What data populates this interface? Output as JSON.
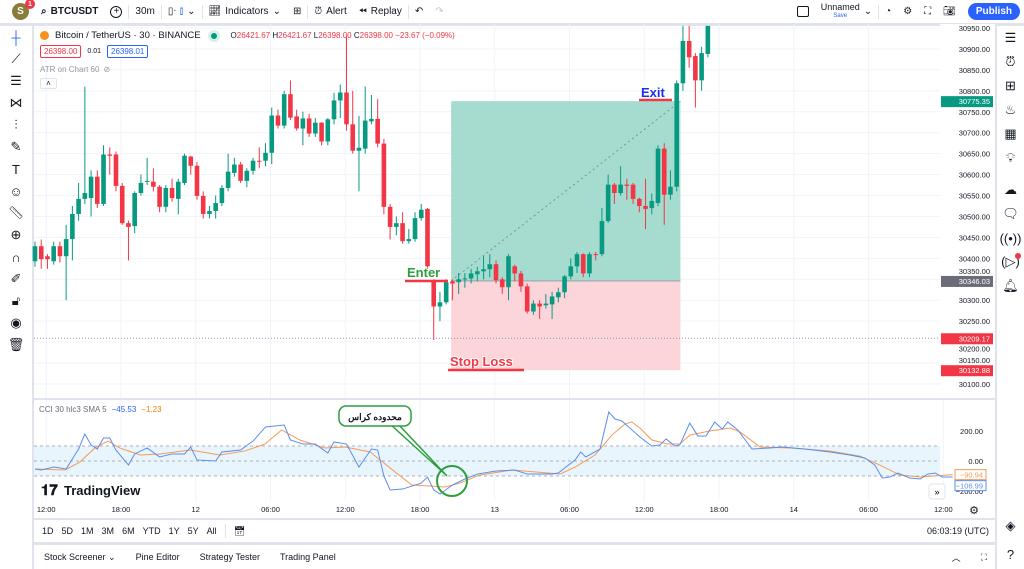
{
  "topbar": {
    "avatar": "S",
    "badge": "1",
    "symbol": "BTCUSDT",
    "interval": "30m",
    "indicators": "Indicators",
    "alert": "Alert",
    "replay": "Replay",
    "layout_name": "Unnamed",
    "layout_save": "Save",
    "publish": "Publish"
  },
  "legend": {
    "title": "Bitcoin / TetherUS · 30 · BINANCE",
    "o_label": "O",
    "o": "26421.67",
    "h_label": "H",
    "h": "26421.67",
    "l_label": "L",
    "l": "26398.00",
    "c_label": "C",
    "c": "26398.00",
    "change": "−23.67 (−0.09%)",
    "bid": "26398.00",
    "spread": "0.01",
    "ask": "26398.01",
    "atr": "ATR on Chart 60"
  },
  "colors": {
    "up": "#089981",
    "down": "#f23645",
    "accent": "#2962ff",
    "cci": "#5b8def",
    "cci_ma": "#f59a55",
    "profit": "#a6dbd0",
    "loss": "#fbd5d9"
  },
  "price_axis": {
    "labels": [
      30950,
      30900,
      30850,
      30800,
      30750,
      30700,
      30650,
      30600,
      30550,
      30500,
      30450,
      30400,
      30350,
      30300,
      30250,
      30200,
      30150,
      30100
    ],
    "markers": [
      {
        "value": 30775.35,
        "text": "30775.35",
        "color": "#089981"
      },
      {
        "value": 30346.03,
        "text": "30346.03",
        "color": "#6a6d78"
      },
      {
        "value": 30209.17,
        "text": "30209.17",
        "color": "#f23645"
      },
      {
        "value": 30132.88,
        "text": "30132.88",
        "color": "#f23645"
      }
    ]
  },
  "position": {
    "entry": 30346.03,
    "target": 30775.35,
    "stop": 30132.88,
    "start_bar": 66.8,
    "end_bar": 103.6,
    "enter_label": "Enter",
    "exit_label": "Exit",
    "stop_label": "Stop Loss",
    "last_line": 30209.17
  },
  "candles": [
    [
      30393,
      30440,
      30380,
      30429
    ],
    [
      30429,
      30445,
      30375,
      30398
    ],
    [
      30405,
      30410,
      30375,
      30398
    ],
    [
      30393,
      30440,
      30385,
      30429
    ],
    [
      30429,
      30440,
      30390,
      30405
    ],
    [
      30405,
      30480,
      30300,
      30446
    ],
    [
      30446,
      30525,
      30395,
      30506
    ],
    [
      30506,
      30580,
      30490,
      30542
    ],
    [
      30542,
      30810,
      30530,
      30556
    ],
    [
      30544,
      30610,
      30500,
      30595
    ],
    [
      30595,
      30610,
      30520,
      30530
    ],
    [
      30530,
      30670,
      30525,
      30648
    ],
    [
      30648,
      30665,
      30600,
      30645
    ],
    [
      30648,
      30655,
      30560,
      30573
    ],
    [
      30573,
      30580,
      30480,
      30484
    ],
    [
      30484,
      30490,
      30395,
      30475
    ],
    [
      30477,
      30560,
      30460,
      30556
    ],
    [
      30556,
      30600,
      30550,
      30580
    ],
    [
      30583,
      30640,
      30575,
      30585
    ],
    [
      30583,
      30615,
      30560,
      30571
    ],
    [
      30571,
      30575,
      30510,
      30523
    ],
    [
      30523,
      30575,
      30510,
      30568
    ],
    [
      30568,
      30590,
      30535,
      30544
    ],
    [
      30542,
      30590,
      30505,
      30583
    ],
    [
      30580,
      30650,
      30575,
      30645
    ],
    [
      30643,
      30645,
      30600,
      30621
    ],
    [
      30621,
      30630,
      30540,
      30549
    ],
    [
      30549,
      30560,
      30495,
      30506
    ],
    [
      30506,
      30525,
      30495,
      30513
    ],
    [
      30513,
      30550,
      30495,
      30532
    ],
    [
      30532,
      30575,
      30525,
      30568
    ],
    [
      30568,
      30650,
      30560,
      30607
    ],
    [
      30604,
      30640,
      30595,
      30624
    ],
    [
      30624,
      30630,
      30580,
      30585
    ],
    [
      30585,
      30615,
      30570,
      30609
    ],
    [
      30609,
      30640,
      30600,
      30633
    ],
    [
      30633,
      30665,
      30615,
      30631
    ],
    [
      30633,
      30675,
      30620,
      30652
    ],
    [
      30652,
      30760,
      30625,
      30741
    ],
    [
      30741,
      30755,
      30710,
      30717
    ],
    [
      30717,
      30800,
      30710,
      30792
    ],
    [
      30792,
      30825,
      30730,
      30736
    ],
    [
      30739,
      30755,
      30705,
      30710
    ],
    [
      30710,
      30750,
      30670,
      30734
    ],
    [
      30734,
      30745,
      30690,
      30698
    ],
    [
      30698,
      30735,
      30690,
      30724
    ],
    [
      30724,
      30725,
      30670,
      30679
    ],
    [
      30679,
      30735,
      30670,
      30732
    ],
    [
      30732,
      30795,
      30720,
      30777
    ],
    [
      30777,
      30815,
      30735,
      30796
    ],
    [
      30796,
      30930,
      30705,
      30720
    ],
    [
      30720,
      30800,
      30650,
      30657
    ],
    [
      30657,
      30740,
      30560,
      30664
    ],
    [
      30662,
      30810,
      30650,
      30729
    ],
    [
      30727,
      30790,
      30720,
      30733
    ],
    [
      30733,
      30780,
      30665,
      30674
    ],
    [
      30674,
      30685,
      30505,
      30523
    ],
    [
      30523,
      30530,
      30445,
      30475
    ],
    [
      30475,
      30500,
      30455,
      30484
    ],
    [
      30484,
      30510,
      30435,
      30441
    ],
    [
      30441,
      30470,
      30435,
      30446
    ],
    [
      30446,
      30510,
      30440,
      30496
    ],
    [
      30496,
      30530,
      30490,
      30516
    ],
    [
      30518,
      30520,
      30370,
      30381
    ],
    [
      30345,
      30350,
      30205,
      30285
    ],
    [
      30285,
      30320,
      30250,
      30295
    ],
    [
      30295,
      30350,
      30290,
      30343
    ],
    [
      30345,
      30350,
      30300,
      30340
    ],
    [
      30343,
      30365,
      30315,
      30350
    ],
    [
      30350,
      30365,
      30330,
      30352
    ],
    [
      30352,
      30375,
      30340,
      30364
    ],
    [
      30362,
      30380,
      30345,
      30369
    ],
    [
      30369,
      30405,
      30350,
      30374
    ],
    [
      30374,
      30410,
      30355,
      30386
    ],
    [
      30386,
      30395,
      30340,
      30348
    ],
    [
      30350,
      30355,
      30315,
      30331
    ],
    [
      30331,
      30410,
      30300,
      30405
    ],
    [
      30381,
      30385,
      30345,
      30364
    ],
    [
      30364,
      30370,
      30320,
      30333
    ],
    [
      30333,
      30340,
      30268,
      30273
    ],
    [
      30273,
      30300,
      30265,
      30292
    ],
    [
      30292,
      30300,
      30255,
      30285
    ],
    [
      30288,
      30315,
      30280,
      30292
    ],
    [
      30290,
      30320,
      30255,
      30309
    ],
    [
      30307,
      30330,
      30295,
      30319
    ],
    [
      30319,
      30360,
      30305,
      30357
    ],
    [
      30357,
      30400,
      30350,
      30381
    ],
    [
      30381,
      30415,
      30365,
      30410
    ],
    [
      30410,
      30412,
      30355,
      30364
    ],
    [
      30364,
      30415,
      30355,
      30410
    ],
    [
      30410,
      30415,
      30395,
      30408
    ],
    [
      30410,
      30520,
      30405,
      30489
    ],
    [
      30489,
      30600,
      30485,
      30576
    ],
    [
      30576,
      30580,
      30530,
      30556
    ],
    [
      30556,
      30620,
      30550,
      30576
    ],
    [
      30576,
      30590,
      30540,
      30573
    ],
    [
      30576,
      30580,
      30530,
      30542
    ],
    [
      30542,
      30545,
      30510,
      30525
    ],
    [
      30525,
      30590,
      30470,
      30518
    ],
    [
      30520,
      30555,
      30505,
      30537
    ],
    [
      30532,
      30670,
      30525,
      30662
    ],
    [
      30662,
      30675,
      30480,
      30552
    ],
    [
      30552,
      30610,
      30540,
      30571
    ],
    [
      30571,
      30825,
      30560,
      30818
    ],
    [
      30818,
      30955,
      30800,
      30919
    ],
    [
      30919,
      30955,
      30855,
      30880
    ],
    [
      30883,
      30890,
      30760,
      30825
    ],
    [
      30825,
      30905,
      30800,
      30890
    ],
    [
      30888,
      30955,
      30880,
      30955
    ]
  ],
  "time_axis": {
    "labels": [
      "12:00",
      "18:00",
      "12",
      "06:00",
      "12:00",
      "18:00",
      "13",
      "06:00",
      "12:00",
      "18:00",
      "14",
      "06:00",
      "12:00"
    ]
  },
  "cci": {
    "title": "CCI 30 hlc3 SMA 5",
    "value": "−45.53",
    "ma_value": "−1.23",
    "axis_labels": [
      "200.00",
      "0.00",
      "−200.00"
    ],
    "last_cci": "−106.99",
    "last_ma": "−90.94",
    "callout": "محدوده کراس",
    "series": [
      [
        0,
        -53
      ],
      [
        1,
        -60
      ],
      [
        3,
        -40
      ],
      [
        5,
        -53
      ],
      [
        7,
        80
      ],
      [
        8,
        180
      ],
      [
        9,
        107
      ],
      [
        10,
        80
      ],
      [
        11,
        153
      ],
      [
        12,
        153
      ],
      [
        13,
        73
      ],
      [
        15,
        -27
      ],
      [
        16,
        47
      ],
      [
        18,
        87
      ],
      [
        20,
        27
      ],
      [
        22,
        47
      ],
      [
        24,
        47
      ],
      [
        25,
        93
      ],
      [
        26,
        7
      ],
      [
        29,
        0
      ],
      [
        30,
        60
      ],
      [
        33,
        73
      ],
      [
        35,
        133
      ],
      [
        37,
        227
      ],
      [
        40,
        240
      ],
      [
        41,
        140
      ],
      [
        43,
        113
      ],
      [
        45,
        113
      ],
      [
        47,
        53
      ],
      [
        48,
        127
      ],
      [
        50,
        113
      ],
      [
        52,
        -40
      ],
      [
        54,
        80
      ],
      [
        55,
        73
      ],
      [
        56,
        -100
      ],
      [
        57,
        -193
      ],
      [
        59,
        -187
      ],
      [
        62,
        -147
      ],
      [
        63,
        -107
      ],
      [
        64,
        -193
      ],
      [
        65,
        -220
      ],
      [
        67,
        -160
      ],
      [
        69,
        -120
      ],
      [
        71,
        -87
      ],
      [
        74,
        -67
      ],
      [
        77,
        -60
      ],
      [
        79,
        -87
      ],
      [
        83,
        -87
      ],
      [
        84,
        -80
      ],
      [
        86.7,
        7
      ],
      [
        87.6,
        60
      ],
      [
        88.4,
        27
      ],
      [
        90.7,
        80
      ],
      [
        92.1,
        327
      ],
      [
        93.1,
        280
      ],
      [
        94.2,
        267
      ],
      [
        97.1,
        160
      ],
      [
        99,
        100
      ],
      [
        100.3,
        107
      ],
      [
        101.3,
        147
      ],
      [
        102.7,
        100
      ],
      [
        103.5,
        107
      ],
      [
        105.1,
        253
      ],
      [
        106.4,
        167
      ],
      [
        107.7,
        167
      ],
      [
        109.1,
        260
      ],
      [
        110.3,
        213
      ],
      [
        111.2,
        260
      ],
      [
        112.8,
        207
      ],
      [
        115.1,
        80
      ],
      [
        118,
        87
      ],
      [
        119.9,
        93
      ],
      [
        123.6,
        80
      ],
      [
        127.6,
        60
      ],
      [
        130.8,
        40
      ],
      [
        133.2,
        20
      ],
      [
        134.8,
        -27
      ],
      [
        136,
        -113
      ],
      [
        137.2,
        -107
      ],
      [
        138.5,
        -80
      ],
      [
        140.4,
        -113
      ],
      [
        142.1,
        -120
      ],
      [
        143.3,
        -87
      ],
      [
        144.5,
        -80
      ],
      [
        145.6,
        -107
      ],
      [
        147.3,
        -107
      ]
    ],
    "ma_series": [
      [
        0,
        -53
      ],
      [
        4.8,
        -60
      ],
      [
        7.2,
        -7
      ],
      [
        9.6,
        87
      ],
      [
        11.7,
        133
      ],
      [
        13.6,
        87
      ],
      [
        16.9,
        40
      ],
      [
        20.1,
        47
      ],
      [
        24.9,
        73
      ],
      [
        29.7,
        40
      ],
      [
        33.7,
        67
      ],
      [
        36.9,
        113
      ],
      [
        39.6,
        207
      ],
      [
        42.5,
        140
      ],
      [
        46.5,
        87
      ],
      [
        49.8,
        93
      ],
      [
        53.8,
        60
      ],
      [
        57.8,
        -73
      ],
      [
        60.5,
        -160
      ],
      [
        63.4,
        -167
      ],
      [
        65.8,
        -173
      ],
      [
        68.2,
        -147
      ],
      [
        71.4,
        -93
      ],
      [
        76.6,
        -60
      ],
      [
        84.3,
        -87
      ],
      [
        86.7,
        -40
      ],
      [
        89.9,
        40
      ],
      [
        92.6,
        173
      ],
      [
        94.7,
        247
      ],
      [
        95.8,
        260
      ],
      [
        97.1,
        220
      ],
      [
        99,
        140
      ],
      [
        101.6,
        113
      ],
      [
        103.5,
        113
      ],
      [
        105.1,
        173
      ],
      [
        108.3,
        200
      ],
      [
        111.6,
        220
      ],
      [
        113.2,
        193
      ],
      [
        116.4,
        93
      ],
      [
        121.2,
        87
      ],
      [
        127.6,
        67
      ],
      [
        132.4,
        33
      ],
      [
        135.6,
        -27
      ],
      [
        138.8,
        -93
      ],
      [
        142.1,
        -107
      ],
      [
        147.3,
        -91
      ]
    ]
  },
  "watermark": "TradingView",
  "timeframes": [
    "1D",
    "5D",
    "1M",
    "3M",
    "6M",
    "YTD",
    "1Y",
    "5Y",
    "All"
  ],
  "clock": "06:03:19 (UTC)",
  "bottom_tabs": [
    "Stock Screener",
    "Pine Editor",
    "Strategy Tester",
    "Trading Panel"
  ]
}
